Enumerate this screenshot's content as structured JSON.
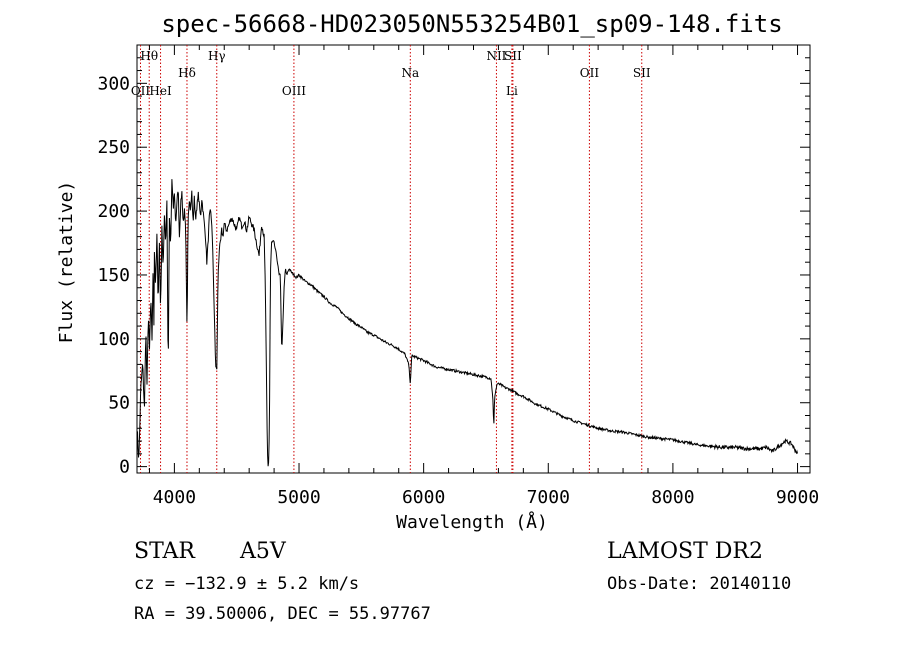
{
  "chart_data": {
    "type": "line",
    "title": "spec-56668-HD023050N553254B01_sp09-148.fits",
    "xlabel": "Wavelength (Å)",
    "ylabel": "Flux (relative)",
    "xlim": [
      3700,
      9100
    ],
    "ylim": [
      -5,
      330
    ],
    "x_ticks": [
      4000,
      5000,
      6000,
      7000,
      8000,
      9000
    ],
    "y_ticks": [
      0,
      50,
      100,
      150,
      200,
      250,
      300
    ],
    "grid": false,
    "line_color": "#000000",
    "marker_color": "#cc0000",
    "series": [
      {
        "x": [
          3700,
          3715,
          3730,
          3745,
          3760,
          3770,
          3780,
          3790,
          3800,
          3810,
          3820,
          3830,
          3835,
          3840,
          3850,
          3860,
          3870,
          3880,
          3890,
          3900,
          3910,
          3920,
          3930,
          3940,
          3950,
          3960,
          3970,
          3980,
          3990,
          4000,
          4010,
          4020,
          4030,
          4040,
          4050,
          4060,
          4070,
          4080,
          4090,
          4101,
          4110,
          4120,
          4130,
          4140,
          4150,
          4160,
          4170,
          4180,
          4190,
          4200,
          4210,
          4220,
          4230,
          4240,
          4250,
          4260,
          4270,
          4280,
          4290,
          4300,
          4310,
          4320,
          4330,
          4340,
          4350,
          4360,
          4370,
          4380,
          4390,
          4400,
          4420,
          4440,
          4460,
          4480,
          4500,
          4520,
          4540,
          4560,
          4580,
          4600,
          4620,
          4640,
          4660,
          4680,
          4700,
          4720,
          4730,
          4740,
          4745,
          4750,
          4755,
          4760,
          4765,
          4770,
          4780,
          4800,
          4820,
          4840,
          4850,
          4861,
          4870,
          4880,
          4890,
          4900,
          4920,
          4940,
          4960,
          4980,
          5000,
          5050,
          5100,
          5150,
          5200,
          5250,
          5300,
          5350,
          5400,
          5450,
          5500,
          5550,
          5600,
          5650,
          5700,
          5750,
          5800,
          5850,
          5880,
          5893,
          5905,
          5950,
          6000,
          6100,
          6200,
          6300,
          6400,
          6500,
          6540,
          6555,
          6563,
          6570,
          6590,
          6620,
          6650,
          6700,
          6750,
          6800,
          6900,
          7000,
          7100,
          7200,
          7300,
          7400,
          7500,
          7600,
          7700,
          7800,
          7900,
          8000,
          8100,
          8200,
          8300,
          8400,
          8500,
          8600,
          8700,
          8750,
          8800,
          8850,
          8900,
          8950,
          9000
        ],
        "y": [
          30,
          5,
          60,
          80,
          45,
          110,
          60,
          120,
          90,
          130,
          100,
          160,
          100,
          170,
          140,
          180,
          130,
          175,
          120,
          190,
          150,
          200,
          175,
          210,
          70,
          195,
          170,
          225,
          200,
          215,
          190,
          205,
          220,
          180,
          205,
          215,
          190,
          200,
          185,
          105,
          195,
          210,
          200,
          215,
          190,
          210,
          195,
          200,
          215,
          205,
          195,
          210,
          200,
          190,
          180,
          160,
          175,
          195,
          200,
          190,
          160,
          120,
          80,
          75,
          150,
          170,
          175,
          185,
          180,
          190,
          185,
          190,
          195,
          190,
          185,
          195,
          188,
          192,
          185,
          195,
          190,
          185,
          175,
          165,
          190,
          180,
          140,
          60,
          20,
          0,
          0,
          20,
          60,
          150,
          175,
          175,
          165,
          150,
          150,
          90,
          110,
          140,
          155,
          150,
          155,
          152,
          150,
          148,
          150,
          145,
          142,
          137,
          133,
          128,
          125,
          120,
          116,
          112,
          109,
          105,
          103,
          100,
          97,
          95,
          92,
          88,
          80,
          65,
          87,
          85,
          83,
          78,
          76,
          74,
          72,
          70,
          69,
          55,
          30,
          55,
          65,
          64,
          62,
          60,
          57,
          55,
          49,
          45,
          40,
          36,
          33,
          30,
          28,
          27,
          25,
          23,
          22,
          21,
          19,
          17,
          16,
          15,
          15,
          14,
          14,
          15,
          12,
          16,
          20,
          18,
          10
        ]
      }
    ],
    "spectral_lines": [
      {
        "label": "Hθ",
        "x": 3798,
        "row": 0
      },
      {
        "label": "OII",
        "x": 3728,
        "row": 1
      },
      {
        "label": "HeI",
        "x": 3889,
        "row": 1
      },
      {
        "label": "Hδ",
        "x": 4101,
        "row": 2
      },
      {
        "label": "Hγ",
        "x": 4340,
        "row": 0
      },
      {
        "label": "OIII",
        "x": 4959,
        "row": 1
      },
      {
        "label": "Na",
        "x": 5893,
        "row": 2
      },
      {
        "label": "NII",
        "x": 6584,
        "row": 0
      },
      {
        "label": "SII",
        "x": 6716,
        "row": 0
      },
      {
        "label": "Li",
        "x": 6708,
        "row": 1
      },
      {
        "label": "OII",
        "x": 7330,
        "row": 2
      },
      {
        "label": "SII",
        "x": 7750,
        "row": 2
      }
    ]
  },
  "info": {
    "object_type": "STAR",
    "subclass": "A5V",
    "survey": "LAMOST DR2",
    "cz": "cz = −132.9 ± 5.2 km/s",
    "obs_date": "Obs-Date: 20140110",
    "radec": "RA =  39.50006, DEC =  55.97767"
  }
}
